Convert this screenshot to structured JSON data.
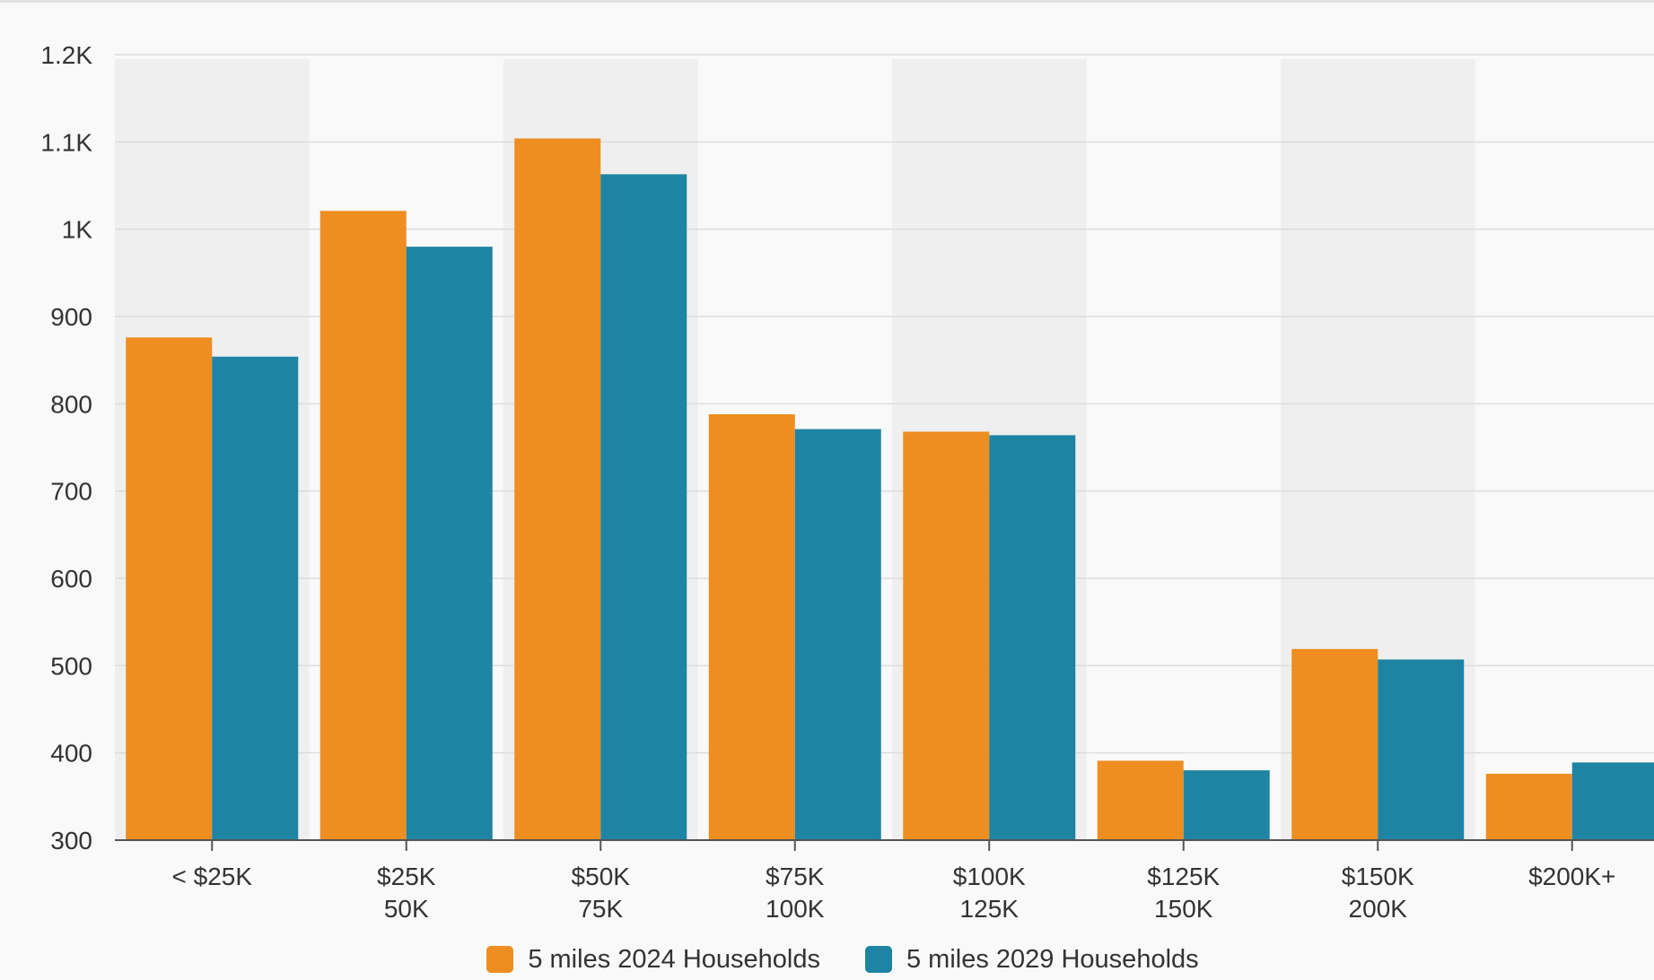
{
  "chart_data": {
    "type": "bar",
    "title": "",
    "xlabel": "",
    "ylabel": "",
    "categories": [
      [
        "< $25K"
      ],
      [
        "$25K",
        "50K"
      ],
      [
        "$50K",
        "75K"
      ],
      [
        "$75K",
        "100K"
      ],
      [
        "$100K",
        "125K"
      ],
      [
        "$125K",
        "150K"
      ],
      [
        "$150K",
        "200K"
      ],
      [
        "$200K+"
      ]
    ],
    "series": [
      {
        "name": "5 miles 2024 Households",
        "color": "#ee8e21",
        "values": [
          876,
          1021,
          1104,
          788,
          768,
          391,
          519,
          376
        ]
      },
      {
        "name": "5 miles 2029 Households",
        "color": "#1f84a4",
        "values": [
          854,
          980,
          1063,
          771,
          764,
          380,
          507,
          389
        ]
      }
    ],
    "ylim": [
      300,
      1200
    ],
    "yticks": [
      {
        "value": 300,
        "label": "300"
      },
      {
        "value": 400,
        "label": "400"
      },
      {
        "value": 500,
        "label": "500"
      },
      {
        "value": 600,
        "label": "600"
      },
      {
        "value": 700,
        "label": "700"
      },
      {
        "value": 800,
        "label": "800"
      },
      {
        "value": 900,
        "label": "900"
      },
      {
        "value": 1000,
        "label": "1K"
      },
      {
        "value": 1100,
        "label": "1.1K"
      },
      {
        "value": 1200,
        "label": "1.2K"
      }
    ],
    "grid": true,
    "alternating_band_color": "#efefef",
    "legend_position": "bottom-center"
  }
}
